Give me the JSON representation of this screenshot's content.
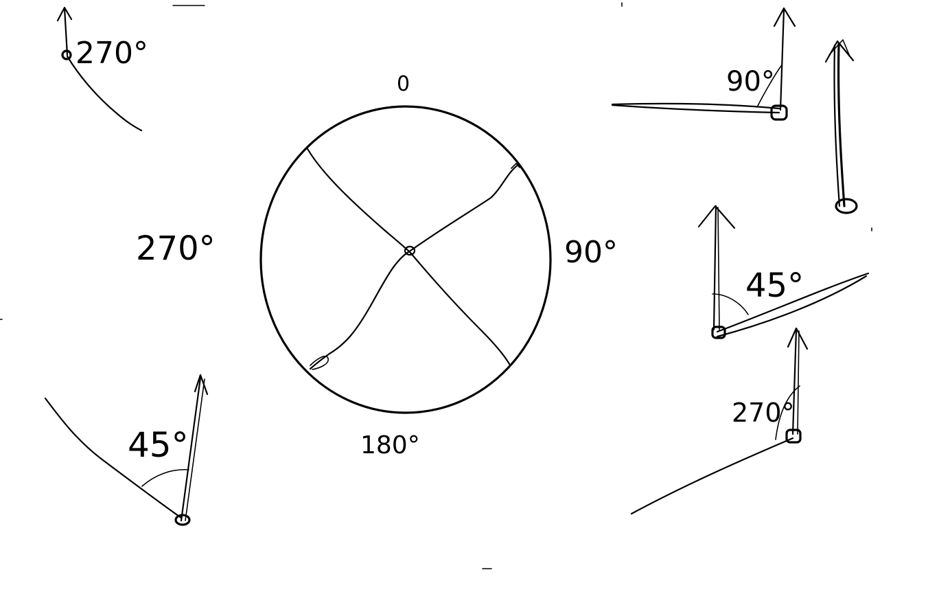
{
  "compass": {
    "label_top": "0",
    "label_right": "90°",
    "label_bottom": "180°",
    "label_left": "270°"
  },
  "examples": {
    "top_left_angle": "270°",
    "bottom_left_angle": "45°",
    "top_right_angle": "90°",
    "middle_right_angle": "45°",
    "bottom_right_angle": "270°"
  },
  "colors": {
    "ink": "#000000",
    "background": "#ffffff"
  }
}
